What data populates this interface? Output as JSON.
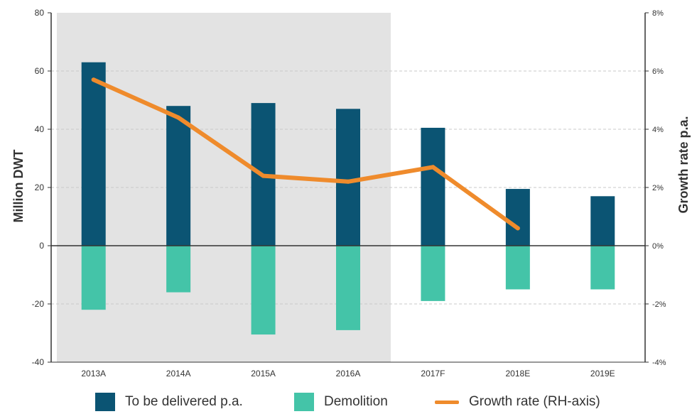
{
  "chart_data": {
    "type": "bar",
    "categories": [
      "2013A",
      "2014A",
      "2015A",
      "2016A",
      "2017F",
      "2018E",
      "2019E"
    ],
    "series": [
      {
        "name": "To be delivered p.a.",
        "type": "bar",
        "axis": "left",
        "values": [
          63,
          48,
          49,
          47,
          40.5,
          19.5,
          17
        ]
      },
      {
        "name": "Demolition",
        "type": "bar",
        "axis": "left",
        "values": [
          -22,
          -16,
          -30.5,
          -29,
          -19,
          -15,
          -15
        ]
      },
      {
        "name": "Growth rate (RH-axis)",
        "type": "line",
        "axis": "right",
        "values": [
          0.057,
          0.044,
          0.024,
          0.022,
          0.027,
          0.006,
          null
        ]
      }
    ],
    "ylabel": "Million DWT",
    "y2label": "Growth rate p.a.",
    "ylim": [
      -40,
      80
    ],
    "yticks": [
      "80",
      "60",
      "40",
      "20",
      "0",
      "-20",
      "-40"
    ],
    "y2lim": [
      -0.04,
      0.08
    ],
    "y2ticks": [
      "8%",
      "6%",
      "4%",
      "2%",
      "0%",
      "-2%",
      "-4%"
    ],
    "shaded_categories": [
      "2013A",
      "2014A",
      "2015A",
      "2016A"
    ],
    "grid": "horizontal dashed",
    "legend_position": "bottom"
  },
  "colors": {
    "delivered": "#0b5473",
    "demolition": "#44c4a8",
    "growth": "#ef8b2c",
    "shade": "#e3e3e3",
    "grid": "#c8c8c8",
    "axis": "#333333"
  },
  "legend": {
    "delivered_label": "To be delivered p.a.",
    "demolition_label": "Demolition",
    "growth_label": "Growth rate (RH-axis)"
  }
}
